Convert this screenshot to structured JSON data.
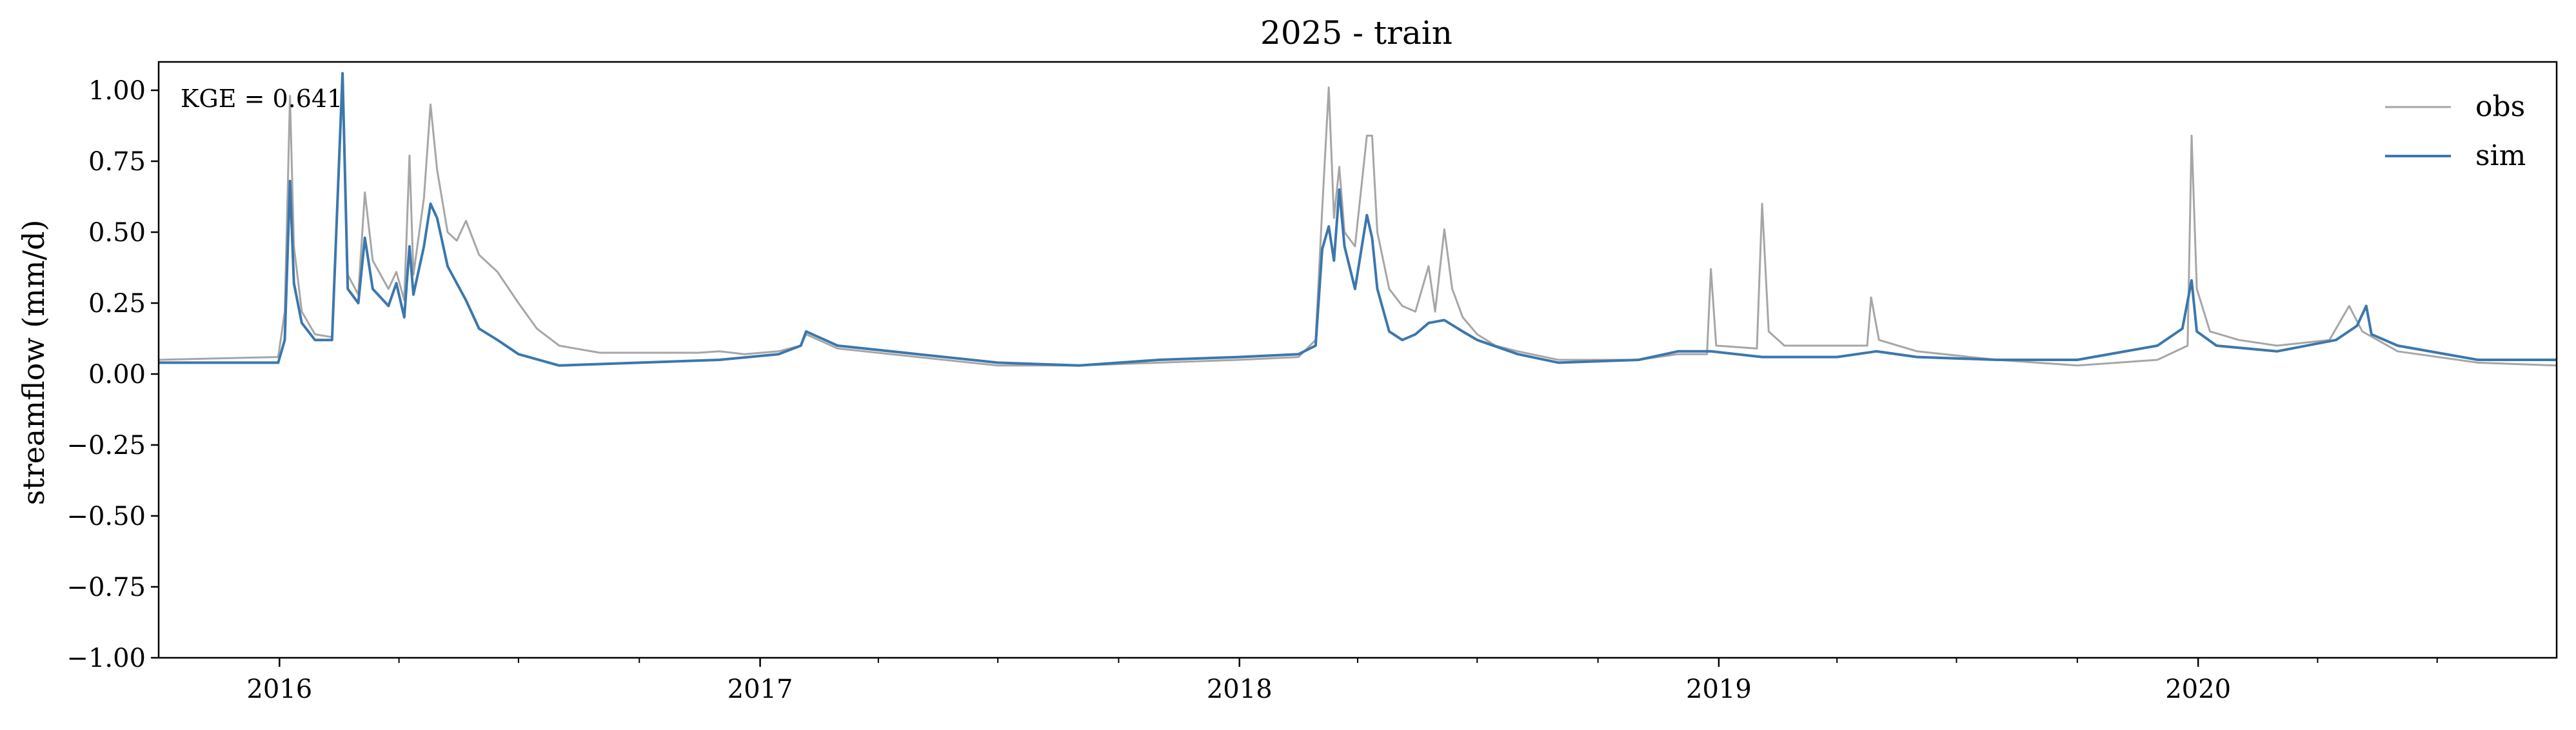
{
  "chart_data": {
    "type": "line",
    "title": "2025 - train",
    "xlabel": "",
    "ylabel": "streamflow (mm/d)",
    "ylim": [
      -1.0,
      1.1
    ],
    "xlim": [
      "2015-10-01",
      "2020-09-30"
    ],
    "grid": false,
    "legend_position": "top-right",
    "annotation": "KGE = 0.641",
    "y_ticks": [
      -1.0,
      -0.75,
      -0.5,
      -0.25,
      0.0,
      0.25,
      0.5,
      0.75,
      1.0
    ],
    "y_tick_labels": [
      "−1.00",
      "−0.75",
      "−0.50",
      "−0.25",
      "0.00",
      "0.25",
      "0.50",
      "0.75",
      "1.00"
    ],
    "x_major_ticks": [
      "2016-01-01",
      "2017-01-01",
      "2018-01-01",
      "2019-01-01",
      "2020-01-01"
    ],
    "x_tick_labels": [
      "2016",
      "2017",
      "2018",
      "2019",
      "2020"
    ],
    "series": [
      {
        "name": "obs",
        "color": "#a6a6a6",
        "points": [
          [
            "2015-10-01",
            0.05
          ],
          [
            "2015-11-15",
            0.055
          ],
          [
            "2015-12-31",
            0.06
          ],
          [
            "2016-01-05",
            0.22
          ],
          [
            "2016-01-09",
            0.98
          ],
          [
            "2016-01-12",
            0.45
          ],
          [
            "2016-01-18",
            0.22
          ],
          [
            "2016-01-28",
            0.14
          ],
          [
            "2016-02-10",
            0.13
          ],
          [
            "2016-02-18",
            1.03
          ],
          [
            "2016-02-22",
            0.35
          ],
          [
            "2016-03-01",
            0.28
          ],
          [
            "2016-03-06",
            0.64
          ],
          [
            "2016-03-12",
            0.4
          ],
          [
            "2016-03-24",
            0.3
          ],
          [
            "2016-03-30",
            0.36
          ],
          [
            "2016-04-05",
            0.26
          ],
          [
            "2016-04-09",
            0.77
          ],
          [
            "2016-04-12",
            0.35
          ],
          [
            "2016-04-20",
            0.62
          ],
          [
            "2016-04-25",
            0.95
          ],
          [
            "2016-04-30",
            0.72
          ],
          [
            "2016-05-08",
            0.5
          ],
          [
            "2016-05-15",
            0.47
          ],
          [
            "2016-05-22",
            0.54
          ],
          [
            "2016-06-01",
            0.42
          ],
          [
            "2016-06-15",
            0.36
          ],
          [
            "2016-07-01",
            0.25
          ],
          [
            "2016-07-15",
            0.16
          ],
          [
            "2016-08-01",
            0.1
          ],
          [
            "2016-09-01",
            0.075
          ],
          [
            "2016-11-15",
            0.075
          ],
          [
            "2016-12-01",
            0.08
          ],
          [
            "2016-12-20",
            0.07
          ],
          [
            "2017-01-15",
            0.08
          ],
          [
            "2017-02-01",
            0.1
          ],
          [
            "2017-02-05",
            0.14
          ],
          [
            "2017-03-01",
            0.09
          ],
          [
            "2017-05-01",
            0.06
          ],
          [
            "2017-07-01",
            0.03
          ],
          [
            "2017-09-01",
            0.03
          ],
          [
            "2017-11-01",
            0.04
          ],
          [
            "2018-01-01",
            0.05
          ],
          [
            "2018-02-15",
            0.06
          ],
          [
            "2018-02-28",
            0.12
          ],
          [
            "2018-03-05",
            0.58
          ],
          [
            "2018-03-10",
            1.01
          ],
          [
            "2018-03-14",
            0.55
          ],
          [
            "2018-03-18",
            0.73
          ],
          [
            "2018-03-22",
            0.5
          ],
          [
            "2018-03-30",
            0.45
          ],
          [
            "2018-04-08",
            0.84
          ],
          [
            "2018-04-12",
            0.84
          ],
          [
            "2018-04-16",
            0.5
          ],
          [
            "2018-04-25",
            0.3
          ],
          [
            "2018-05-05",
            0.24
          ],
          [
            "2018-05-15",
            0.22
          ],
          [
            "2018-05-25",
            0.38
          ],
          [
            "2018-05-30",
            0.22
          ],
          [
            "2018-06-06",
            0.51
          ],
          [
            "2018-06-12",
            0.3
          ],
          [
            "2018-06-20",
            0.2
          ],
          [
            "2018-07-01",
            0.14
          ],
          [
            "2018-07-15",
            0.1
          ],
          [
            "2018-08-01",
            0.08
          ],
          [
            "2018-09-01",
            0.05
          ],
          [
            "2018-11-01",
            0.05
          ],
          [
            "2018-12-01",
            0.07
          ],
          [
            "2018-12-23",
            0.07
          ],
          [
            "2018-12-26",
            0.37
          ],
          [
            "2018-12-30",
            0.1
          ],
          [
            "2019-01-30",
            0.09
          ],
          [
            "2019-02-03",
            0.6
          ],
          [
            "2019-02-08",
            0.15
          ],
          [
            "2019-02-20",
            0.1
          ],
          [
            "2019-04-15",
            0.1
          ],
          [
            "2019-04-24",
            0.1
          ],
          [
            "2019-04-27",
            0.27
          ],
          [
            "2019-05-03",
            0.12
          ],
          [
            "2019-06-01",
            0.08
          ],
          [
            "2019-08-01",
            0.05
          ],
          [
            "2019-10-01",
            0.03
          ],
          [
            "2019-12-01",
            0.05
          ],
          [
            "2019-12-24",
            0.1
          ],
          [
            "2019-12-27",
            0.84
          ],
          [
            "2019-12-31",
            0.3
          ],
          [
            "2020-01-10",
            0.15
          ],
          [
            "2020-02-01",
            0.12
          ],
          [
            "2020-03-01",
            0.1
          ],
          [
            "2020-04-10",
            0.12
          ],
          [
            "2020-04-25",
            0.24
          ],
          [
            "2020-05-05",
            0.15
          ],
          [
            "2020-06-01",
            0.08
          ],
          [
            "2020-08-01",
            0.04
          ],
          [
            "2020-09-30",
            0.03
          ]
        ]
      },
      {
        "name": "sim",
        "color": "#3b77ad",
        "points": [
          [
            "2015-10-01",
            0.04
          ],
          [
            "2015-12-31",
            0.04
          ],
          [
            "2016-01-05",
            0.12
          ],
          [
            "2016-01-09",
            0.68
          ],
          [
            "2016-01-12",
            0.32
          ],
          [
            "2016-01-18",
            0.18
          ],
          [
            "2016-01-28",
            0.12
          ],
          [
            "2016-02-10",
            0.12
          ],
          [
            "2016-02-18",
            1.06
          ],
          [
            "2016-02-22",
            0.3
          ],
          [
            "2016-03-01",
            0.25
          ],
          [
            "2016-03-06",
            0.48
          ],
          [
            "2016-03-12",
            0.3
          ],
          [
            "2016-03-24",
            0.24
          ],
          [
            "2016-03-30",
            0.32
          ],
          [
            "2016-04-05",
            0.2
          ],
          [
            "2016-04-09",
            0.45
          ],
          [
            "2016-04-12",
            0.28
          ],
          [
            "2016-04-20",
            0.45
          ],
          [
            "2016-04-25",
            0.6
          ],
          [
            "2016-04-30",
            0.55
          ],
          [
            "2016-05-08",
            0.38
          ],
          [
            "2016-05-15",
            0.32
          ],
          [
            "2016-05-22",
            0.26
          ],
          [
            "2016-06-01",
            0.16
          ],
          [
            "2016-06-15",
            0.12
          ],
          [
            "2016-07-01",
            0.07
          ],
          [
            "2016-08-01",
            0.03
          ],
          [
            "2016-10-01",
            0.04
          ],
          [
            "2016-12-01",
            0.05
          ],
          [
            "2017-01-15",
            0.07
          ],
          [
            "2017-02-01",
            0.1
          ],
          [
            "2017-02-05",
            0.15
          ],
          [
            "2017-03-01",
            0.1
          ],
          [
            "2017-05-01",
            0.07
          ],
          [
            "2017-07-01",
            0.04
          ],
          [
            "2017-09-01",
            0.03
          ],
          [
            "2017-11-01",
            0.05
          ],
          [
            "2018-01-01",
            0.06
          ],
          [
            "2018-02-15",
            0.07
          ],
          [
            "2018-02-28",
            0.1
          ],
          [
            "2018-03-05",
            0.44
          ],
          [
            "2018-03-10",
            0.52
          ],
          [
            "2018-03-14",
            0.4
          ],
          [
            "2018-03-18",
            0.65
          ],
          [
            "2018-03-22",
            0.45
          ],
          [
            "2018-03-30",
            0.3
          ],
          [
            "2018-04-08",
            0.56
          ],
          [
            "2018-04-12",
            0.48
          ],
          [
            "2018-04-16",
            0.3
          ],
          [
            "2018-04-25",
            0.15
          ],
          [
            "2018-05-05",
            0.12
          ],
          [
            "2018-05-15",
            0.14
          ],
          [
            "2018-05-25",
            0.18
          ],
          [
            "2018-06-06",
            0.19
          ],
          [
            "2018-06-20",
            0.15
          ],
          [
            "2018-07-01",
            0.12
          ],
          [
            "2018-08-01",
            0.07
          ],
          [
            "2018-09-01",
            0.04
          ],
          [
            "2018-11-01",
            0.05
          ],
          [
            "2018-12-01",
            0.08
          ],
          [
            "2018-12-26",
            0.08
          ],
          [
            "2019-02-03",
            0.06
          ],
          [
            "2019-04-01",
            0.06
          ],
          [
            "2019-05-01",
            0.08
          ],
          [
            "2019-06-01",
            0.06
          ],
          [
            "2019-08-01",
            0.05
          ],
          [
            "2019-10-01",
            0.05
          ],
          [
            "2019-12-01",
            0.1
          ],
          [
            "2019-12-20",
            0.16
          ],
          [
            "2019-12-27",
            0.33
          ],
          [
            "2019-12-31",
            0.15
          ],
          [
            "2020-01-15",
            0.1
          ],
          [
            "2020-03-01",
            0.08
          ],
          [
            "2020-04-15",
            0.12
          ],
          [
            "2020-05-01",
            0.17
          ],
          [
            "2020-05-08",
            0.24
          ],
          [
            "2020-05-12",
            0.14
          ],
          [
            "2020-06-01",
            0.1
          ],
          [
            "2020-08-01",
            0.05
          ],
          [
            "2020-09-30",
            0.05
          ]
        ]
      }
    ]
  }
}
